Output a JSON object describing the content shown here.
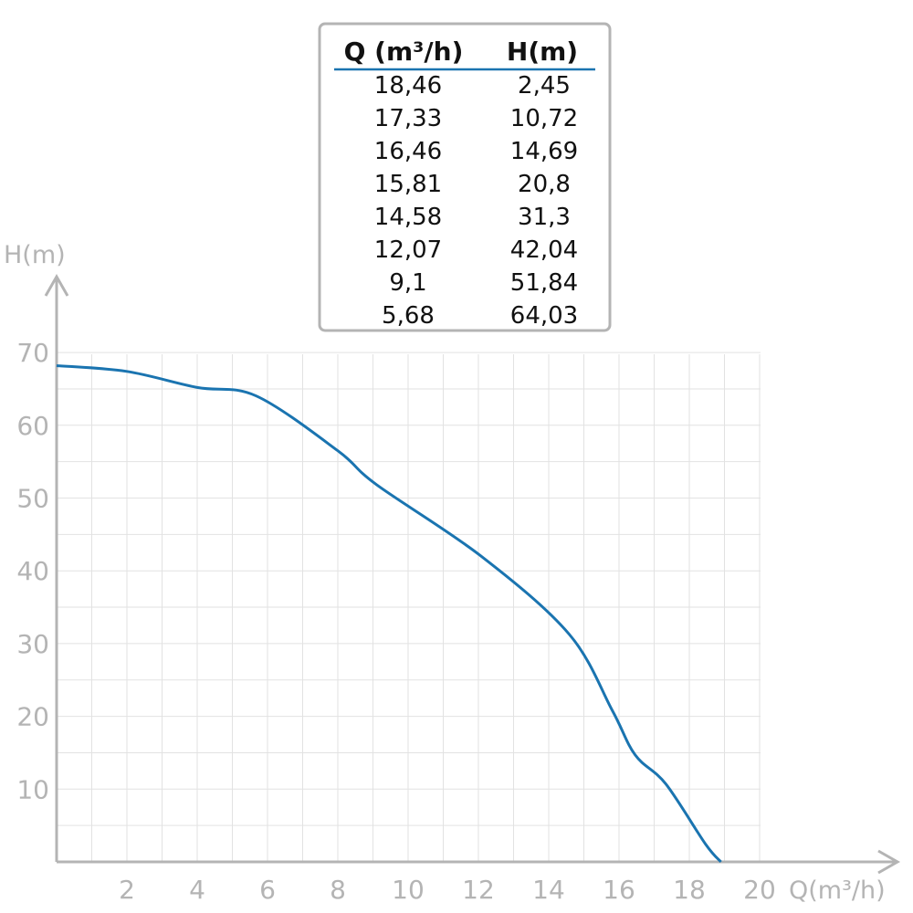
{
  "chart_data": {
    "type": "line",
    "xlabel": "Q(m³/h)",
    "ylabel": "H(m)",
    "xlim": [
      0,
      20
    ],
    "ylim": [
      0,
      70
    ],
    "x_ticks": [
      "2",
      "4",
      "6",
      "8",
      "10",
      "12",
      "14",
      "16",
      "18",
      "20"
    ],
    "y_ticks": [
      "10",
      "20",
      "30",
      "40",
      "50",
      "60",
      "70"
    ],
    "grid": true,
    "series": [
      {
        "color": "#1a74b0",
        "x": [
          0,
          2,
          4,
          5.68,
          8,
          9.1,
          12.07,
          14.58,
          15.81,
          16.46,
          17.33,
          18.46,
          18.9
        ],
        "y": [
          68.2,
          67.4,
          65.2,
          64.03,
          56.5,
          51.84,
          42.04,
          31.3,
          20.8,
          14.69,
          10.72,
          2.45,
          0
        ]
      }
    ],
    "table": {
      "headers": [
        "Q (m³/h)",
        "H(m)"
      ],
      "rows": [
        [
          "18,46",
          "2,45"
        ],
        [
          "17,33",
          "10,72"
        ],
        [
          "16,46",
          "14,69"
        ],
        [
          "15,81",
          "20,8"
        ],
        [
          "14,58",
          "31,3"
        ],
        [
          "12,07",
          "42,04"
        ],
        [
          "9,1",
          "51,84"
        ],
        [
          "5,68",
          "64,03"
        ]
      ]
    },
    "colors": {
      "curve": "#1a74b0",
      "axis": "#b4b4b4",
      "grid": "#e2e2e2",
      "table_border": "#b4b4b4",
      "table_rule": "#1a74b0",
      "text": "#111111"
    }
  }
}
